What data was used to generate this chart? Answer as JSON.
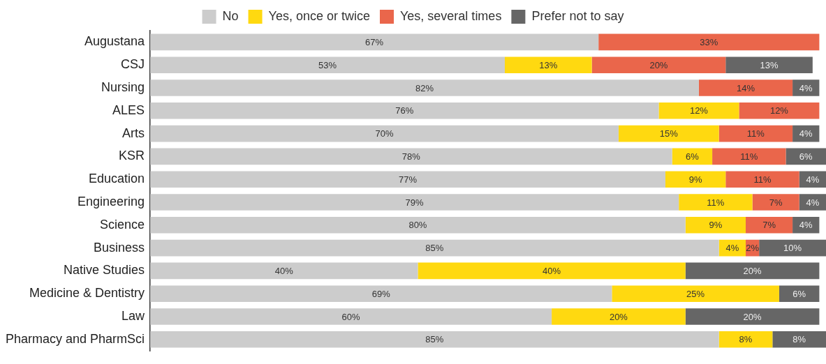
{
  "chart_data": {
    "type": "bar",
    "orientation": "horizontal",
    "stacked": true,
    "legend": "top",
    "tick_labels": "y",
    "categories": [
      "Augustana",
      "CSJ",
      "Nursing",
      "ALES",
      "Arts",
      "KSR",
      "Education",
      "Engineering",
      "Science",
      "Business",
      "Native Studies",
      "Medicine & Dentistry",
      "Law",
      "Pharmacy and PharmSci"
    ],
    "series": [
      {
        "name": "No",
        "color": "#cccccc",
        "values": [
          67,
          53,
          82,
          76,
          70,
          78,
          77,
          79,
          80,
          85,
          40,
          69,
          60,
          85
        ],
        "value_labels": [
          "67%",
          "53%",
          "82%",
          "76%",
          "70%",
          "78%",
          "77%",
          "79%",
          "80%",
          "85%",
          "40%",
          "69%",
          "60%",
          "85%"
        ]
      },
      {
        "name": "Yes, once or twice",
        "color": "#ffd910",
        "values": [
          null,
          13,
          null,
          12,
          15,
          6,
          9,
          11,
          9,
          4,
          40,
          25,
          20,
          8
        ],
        "value_labels": [
          null,
          "13%",
          null,
          "12%",
          "15%",
          "6%",
          "9%",
          "11%",
          "9%",
          "4%",
          "40%",
          "25%",
          "20%",
          "8%"
        ]
      },
      {
        "name": "Yes, several times",
        "color": "#ea664b",
        "values": [
          33,
          20,
          14,
          12,
          11,
          11,
          11,
          7,
          7,
          2,
          null,
          null,
          null,
          null
        ],
        "value_labels": [
          "33%",
          "20%",
          "14%",
          "12%",
          "11%",
          "11%",
          "11%",
          "7%",
          "7%",
          "2%",
          null,
          null,
          null,
          null
        ]
      },
      {
        "name": "Prefer not to say",
        "color": "#666666",
        "values": [
          null,
          13,
          4,
          null,
          4,
          6,
          4,
          4,
          4,
          10,
          20,
          6,
          20,
          8
        ],
        "value_labels": [
          null,
          "13%",
          "4%",
          null,
          "4%",
          "6%",
          "4%",
          "4%",
          "4%",
          "10%",
          "20%",
          "6%",
          "20%",
          "8%"
        ]
      }
    ]
  }
}
